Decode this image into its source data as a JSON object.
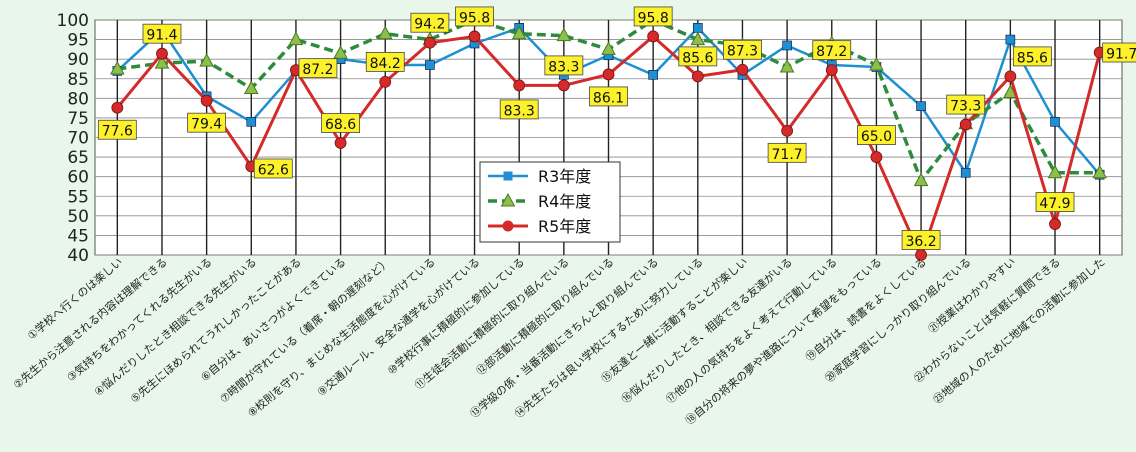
{
  "chart_data": {
    "type": "line",
    "categories": [
      "①学校へ行くのは楽しい",
      "②先生から注意される内容は理解できる",
      "③気持ちをわかってくれる先生がいる",
      "④悩んだりしたとき相談できる先生がいる",
      "⑤先生にほめられてうれしかったことがある",
      "⑥自分は、あいさつがよくできている",
      "⑦時間が守れている（着席・朝の遅刻など）",
      "⑧校則を守り、まじめな生活態度を心がけている",
      "⑨交通ルール、安全な通学を心がけている",
      "⑩学校行事に積極的に参加している",
      "⑪生徒会活動に積極的に取り組んでいる",
      "⑫部活動に積極的に取り組んでいる",
      "⑬学級の係・当番活動にきちんと取り組んでいる",
      "⑭先生たちは良い学校にするために努力している",
      "⑮友達と一緒に活動することが楽しい",
      "⑯悩んだりしたとき、相談できる友達がいる",
      "⑰他の人の気持ちをよく考えて行動している",
      "⑱自分の将来の夢や進路について希望をもっている",
      "⑲自分は、読書をよくしている",
      "⑳家庭学習にしっかり取り組んでいる",
      "㉑授業はわかりやすい",
      "㉒わからないことは気軽に質問できる",
      "㉓地域の人のために地域での活動に参加した"
    ],
    "series": [
      {
        "name": "R3年度",
        "color": "#1e8fd0",
        "style": "solid-square",
        "values": [
          87,
          97.5,
          80.5,
          74,
          87,
          90,
          88.5,
          88.5,
          94,
          98,
          86,
          91,
          86,
          98,
          86,
          93.5,
          88.5,
          88,
          78,
          61,
          95,
          74,
          60.5
        ]
      },
      {
        "name": "R4年度",
        "color": "#2e8b3c",
        "style": "dashed-triangle",
        "values": [
          87.5,
          89,
          89.5,
          82.5,
          95,
          91.5,
          96.5,
          95,
          100,
          96.5,
          96,
          92.5,
          100,
          95,
          93.5,
          88,
          94,
          88.5,
          59,
          73.5,
          81.5,
          61,
          61
        ]
      },
      {
        "name": "R5年度",
        "color": "#d42a2a",
        "style": "solid-circle",
        "values": [
          77.6,
          91.4,
          79.4,
          62.6,
          87.2,
          68.6,
          84.2,
          94.2,
          95.8,
          83.3,
          83.3,
          86.1,
          95.8,
          85.6,
          87.3,
          71.7,
          87.2,
          65.0,
          36.2,
          73.3,
          85.6,
          47.9,
          91.7
        ]
      }
    ],
    "data_labels": [
      "77.6",
      "91.4",
      "79.4",
      "62.6",
      "87.2",
      "68.6",
      "84.2",
      "94.2",
      "95.8",
      "83.3",
      "83.3",
      "86.1",
      "95.8",
      "85.6",
      "87.3",
      "71.7",
      "87.2",
      "65.0",
      "36.2",
      "73.3",
      "85.6",
      "47.9",
      "91.7"
    ],
    "yticks": [
      "100",
      "95",
      "90",
      "85",
      "80",
      "75",
      "70",
      "65",
      "60",
      "55",
      "50",
      "45",
      "40"
    ],
    "ylim": [
      40,
      100
    ],
    "grid": true,
    "legend_position": "center"
  }
}
